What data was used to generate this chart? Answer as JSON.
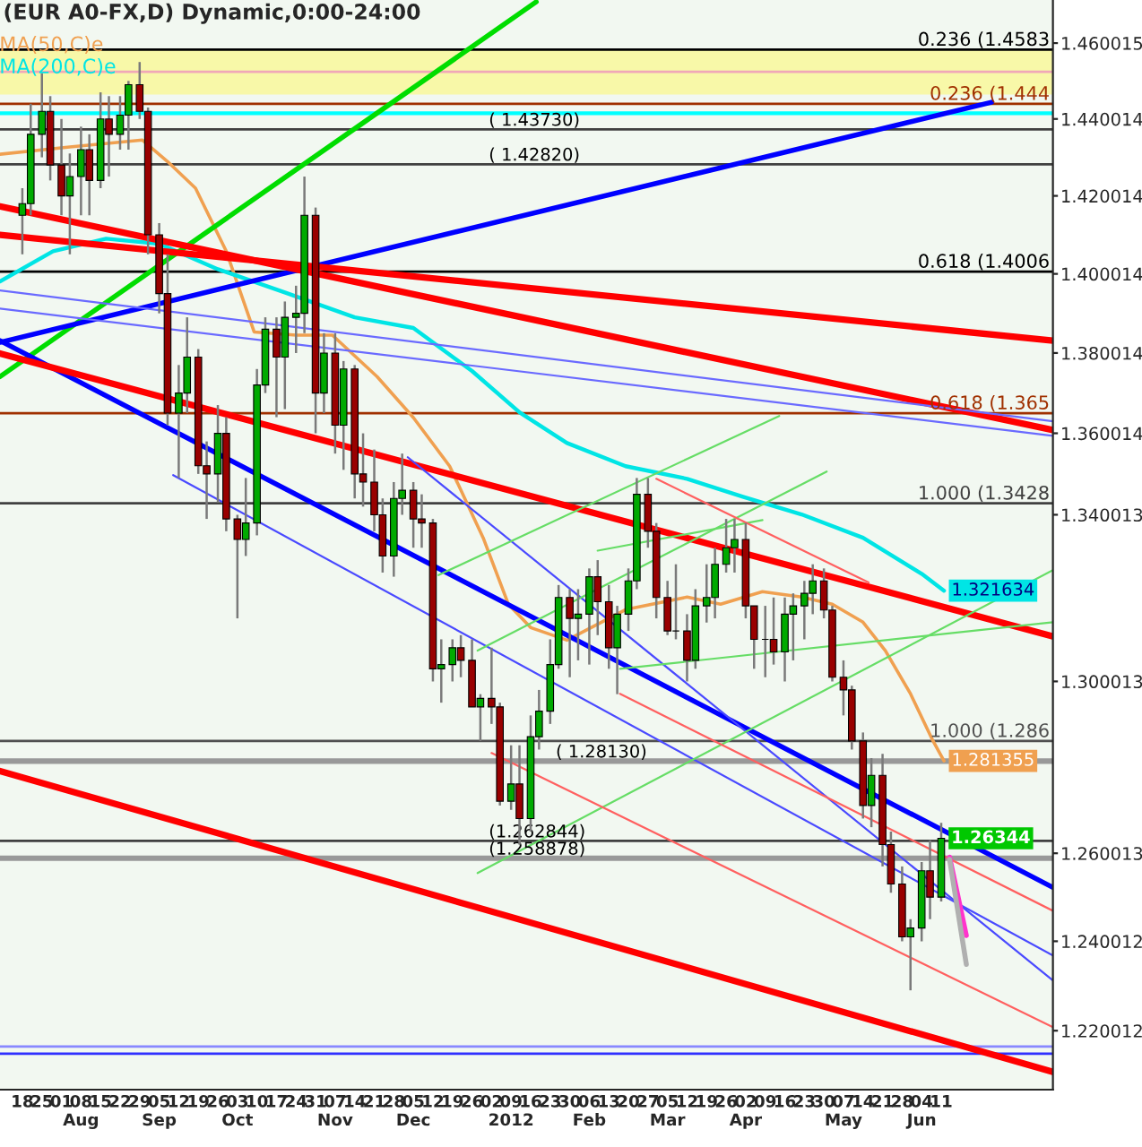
{
  "chart_data": {
    "type": "candlestick",
    "title": "(EUR A0-FX,D) Dynamic,0:00-24:00",
    "log": true,
    "legend": "top left",
    "x": [
      "2011-07-18",
      "2011-07-21",
      "2011-07-25",
      "2011-07-28",
      "2011-08-01",
      "2011-08-04",
      "2011-08-08",
      "2011-08-11",
      "2011-08-15",
      "2011-08-18",
      "2011-08-22",
      "2011-08-25",
      "2011-08-29",
      "2011-09-01",
      "2011-09-05",
      "2011-09-08",
      "2011-09-12",
      "2011-09-15",
      "2011-09-19",
      "2011-09-22",
      "2011-09-26",
      "2011-09-29",
      "2011-10-03",
      "2011-10-06",
      "2011-10-10",
      "2011-10-13",
      "2011-10-17",
      "2011-10-20",
      "2011-10-24",
      "2011-10-27",
      "2011-10-31",
      "2011-11-03",
      "2011-11-07",
      "2011-11-10",
      "2011-11-14",
      "2011-11-17",
      "2011-11-21",
      "2011-11-24",
      "2011-11-28",
      "2011-12-01",
      "2011-12-05",
      "2011-12-08",
      "2011-12-12",
      "2011-12-15",
      "2011-12-19",
      "2011-12-22",
      "2011-12-26",
      "2011-12-29",
      "2012-01-02",
      "2012-01-05",
      "2012-01-09",
      "2012-01-12",
      "2012-01-16",
      "2012-01-19",
      "2012-01-23",
      "2012-01-26",
      "2012-01-30",
      "2012-02-02",
      "2012-02-06",
      "2012-02-09",
      "2012-02-13",
      "2012-02-16",
      "2012-02-20",
      "2012-02-23",
      "2012-02-27",
      "2012-03-01",
      "2012-03-05",
      "2012-03-08",
      "2012-03-12",
      "2012-03-15",
      "2012-03-19",
      "2012-03-22",
      "2012-03-26",
      "2012-03-29",
      "2012-04-02",
      "2012-04-05",
      "2012-04-09",
      "2012-04-12",
      "2012-04-16",
      "2012-04-19",
      "2012-04-23",
      "2012-04-26",
      "2012-04-30",
      "2012-05-03",
      "2012-05-07",
      "2012-05-10",
      "2012-05-14",
      "2012-05-17",
      "2012-05-21",
      "2012-05-24",
      "2012-05-28",
      "2012-05-31",
      "2012-06-04",
      "2012-06-07",
      "2012-06-11"
    ],
    "ohlc": [
      [
        1.415,
        1.422,
        1.405,
        1.418
      ],
      [
        1.418,
        1.444,
        1.415,
        1.436
      ],
      [
        1.436,
        1.452,
        1.43,
        1.442
      ],
      [
        1.442,
        1.446,
        1.424,
        1.428
      ],
      [
        1.428,
        1.44,
        1.415,
        1.42
      ],
      [
        1.42,
        1.431,
        1.405,
        1.425
      ],
      [
        1.425,
        1.438,
        1.415,
        1.432
      ],
      [
        1.432,
        1.436,
        1.415,
        1.424
      ],
      [
        1.424,
        1.447,
        1.422,
        1.44
      ],
      [
        1.44,
        1.446,
        1.425,
        1.436
      ],
      [
        1.436,
        1.446,
        1.432,
        1.441
      ],
      [
        1.441,
        1.45,
        1.432,
        1.449
      ],
      [
        1.449,
        1.455,
        1.44,
        1.442
      ],
      [
        1.442,
        1.443,
        1.405,
        1.41
      ],
      [
        1.41,
        1.413,
        1.39,
        1.395
      ],
      [
        1.395,
        1.405,
        1.362,
        1.365
      ],
      [
        1.365,
        1.377,
        1.349,
        1.37
      ],
      [
        1.37,
        1.389,
        1.365,
        1.379
      ],
      [
        1.379,
        1.381,
        1.35,
        1.352
      ],
      [
        1.352,
        1.358,
        1.339,
        1.35
      ],
      [
        1.35,
        1.367,
        1.343,
        1.36
      ],
      [
        1.36,
        1.364,
        1.336,
        1.339
      ],
      [
        1.339,
        1.34,
        1.315,
        1.334
      ],
      [
        1.334,
        1.349,
        1.33,
        1.338
      ],
      [
        1.338,
        1.376,
        1.335,
        1.372
      ],
      [
        1.372,
        1.389,
        1.37,
        1.386
      ],
      [
        1.386,
        1.389,
        1.364,
        1.379
      ],
      [
        1.379,
        1.393,
        1.366,
        1.389
      ],
      [
        1.389,
        1.397,
        1.38,
        1.39
      ],
      [
        1.39,
        1.425,
        1.385,
        1.415
      ],
      [
        1.415,
        1.417,
        1.36,
        1.37
      ],
      [
        1.37,
        1.385,
        1.365,
        1.38
      ],
      [
        1.38,
        1.385,
        1.355,
        1.362
      ],
      [
        1.362,
        1.378,
        1.351,
        1.376
      ],
      [
        1.376,
        1.377,
        1.344,
        1.35
      ],
      [
        1.35,
        1.36,
        1.342,
        1.348
      ],
      [
        1.348,
        1.356,
        1.336,
        1.34
      ],
      [
        1.34,
        1.344,
        1.326,
        1.33
      ],
      [
        1.33,
        1.348,
        1.325,
        1.344
      ],
      [
        1.344,
        1.355,
        1.34,
        1.346
      ],
      [
        1.346,
        1.348,
        1.332,
        1.339
      ],
      [
        1.339,
        1.345,
        1.332,
        1.338
      ],
      [
        1.338,
        1.339,
        1.3,
        1.303
      ],
      [
        1.303,
        1.31,
        1.295,
        1.304
      ],
      [
        1.304,
        1.31,
        1.3,
        1.308
      ],
      [
        1.308,
        1.311,
        1.301,
        1.305
      ],
      [
        1.305,
        1.31,
        1.294,
        1.294
      ],
      [
        1.294,
        1.297,
        1.286,
        1.296
      ],
      [
        1.296,
        1.308,
        1.29,
        1.294
      ],
      [
        1.294,
        1.295,
        1.271,
        1.272
      ],
      [
        1.272,
        1.285,
        1.27,
        1.276
      ],
      [
        1.276,
        1.285,
        1.262,
        1.268
      ],
      [
        1.268,
        1.292,
        1.265,
        1.287
      ],
      [
        1.287,
        1.298,
        1.284,
        1.293
      ],
      [
        1.293,
        1.31,
        1.29,
        1.304
      ],
      [
        1.304,
        1.323,
        1.303,
        1.32
      ],
      [
        1.32,
        1.322,
        1.301,
        1.315
      ],
      [
        1.315,
        1.322,
        1.305,
        1.316
      ],
      [
        1.316,
        1.327,
        1.304,
        1.325
      ],
      [
        1.325,
        1.329,
        1.311,
        1.319
      ],
      [
        1.319,
        1.323,
        1.303,
        1.308
      ],
      [
        1.308,
        1.318,
        1.297,
        1.316
      ],
      [
        1.316,
        1.327,
        1.312,
        1.324
      ],
      [
        1.324,
        1.349,
        1.322,
        1.345
      ],
      [
        1.345,
        1.349,
        1.332,
        1.336
      ],
      [
        1.336,
        1.338,
        1.315,
        1.32
      ],
      [
        1.32,
        1.324,
        1.311,
        1.312
      ],
      [
        1.312,
        1.328,
        1.31,
        1.312
      ],
      [
        1.312,
        1.316,
        1.3,
        1.305
      ],
      [
        1.305,
        1.322,
        1.303,
        1.318
      ],
      [
        1.318,
        1.328,
        1.314,
        1.32
      ],
      [
        1.32,
        1.332,
        1.315,
        1.328
      ],
      [
        1.328,
        1.339,
        1.326,
        1.332
      ],
      [
        1.332,
        1.339,
        1.326,
        1.334
      ],
      [
        1.334,
        1.338,
        1.315,
        1.318
      ],
      [
        1.318,
        1.318,
        1.303,
        1.31
      ],
      [
        1.31,
        1.318,
        1.301,
        1.31
      ],
      [
        1.31,
        1.32,
        1.304,
        1.307
      ],
      [
        1.307,
        1.32,
        1.3,
        1.316
      ],
      [
        1.316,
        1.321,
        1.305,
        1.318
      ],
      [
        1.318,
        1.324,
        1.31,
        1.321
      ],
      [
        1.321,
        1.328,
        1.316,
        1.324
      ],
      [
        1.324,
        1.327,
        1.315,
        1.317
      ],
      [
        1.317,
        1.318,
        1.3,
        1.301
      ],
      [
        1.301,
        1.305,
        1.292,
        1.298
      ],
      [
        1.298,
        1.299,
        1.284,
        1.286
      ],
      [
        1.286,
        1.288,
        1.268,
        1.271
      ],
      [
        1.271,
        1.282,
        1.266,
        1.278
      ],
      [
        1.278,
        1.283,
        1.257,
        1.262
      ],
      [
        1.262,
        1.265,
        1.251,
        1.253
      ],
      [
        1.253,
        1.257,
        1.24,
        1.241
      ],
      [
        1.241,
        1.245,
        1.229,
        1.243
      ],
      [
        1.243,
        1.258,
        1.24,
        1.256
      ],
      [
        1.256,
        1.263,
        1.245,
        1.25
      ],
      [
        1.25,
        1.267,
        1.249,
        1.26344
      ]
    ],
    "series": [
      {
        "type": "line",
        "name": "MA(50,C)e",
        "color": "#f0a050",
        "x": [
          "2011-07-10",
          "2011-08-04",
          "2011-08-30",
          "2011-09-08",
          "2011-09-18",
          "2011-09-29",
          "2011-10-09",
          "2011-10-24",
          "2011-11-06",
          "2011-11-22",
          "2011-12-05",
          "2011-12-18",
          "2011-12-30",
          "2012-01-08",
          "2012-01-16",
          "2012-01-29",
          "2012-02-19",
          "2012-03-12",
          "2012-03-24",
          "2012-04-08",
          "2012-04-22",
          "2012-05-03",
          "2012-05-14",
          "2012-05-22",
          "2012-05-31",
          "2012-06-08",
          "2012-06-12"
        ],
        "values": [
          1.4308,
          1.4327,
          1.4345,
          1.4289,
          1.422,
          1.4058,
          1.3853,
          1.3845,
          1.3845,
          1.3741,
          1.3639,
          1.3519,
          1.3344,
          1.3184,
          1.3128,
          1.3098,
          1.3171,
          1.3201,
          1.3184,
          1.3214,
          1.3201,
          1.3184,
          1.3141,
          1.3073,
          1.2971,
          1.2861,
          1.281355
        ],
        "value_labels": [
          null,
          null,
          null,
          null,
          null,
          null,
          null,
          null,
          null,
          null,
          null,
          null,
          null,
          null,
          null,
          null,
          null,
          null,
          null,
          null,
          null,
          null,
          null,
          null,
          null,
          null,
          "1.281355"
        ]
      },
      {
        "type": "line",
        "name": "MA(200,C)e",
        "color": "#00e5e5",
        "x": [
          "2011-07-10",
          "2011-07-29",
          "2011-08-17",
          "2011-09-05",
          "2011-09-26",
          "2011-10-20",
          "2011-11-14",
          "2011-12-05",
          "2011-12-26",
          "2012-01-12",
          "2012-01-29",
          "2012-02-19",
          "2012-03-12",
          "2012-04-01",
          "2012-04-22",
          "2012-05-14",
          "2012-06-04",
          "2012-06-12"
        ],
        "values": [
          1.3981,
          1.4058,
          1.409,
          1.4077,
          1.4012,
          1.3953,
          1.389,
          1.3863,
          1.3755,
          1.3652,
          1.3576,
          1.3519,
          1.3488,
          1.3444,
          1.3401,
          1.3344,
          1.3257,
          1.321634
        ],
        "value_labels": [
          null,
          null,
          null,
          null,
          null,
          null,
          null,
          null,
          null,
          null,
          null,
          null,
          null,
          null,
          null,
          null,
          null,
          "1.321634"
        ]
      },
      {
        "type": "line",
        "color": "#00dd00",
        "x": [
          "2011-07-10",
          "2012-01-18"
        ],
        "values": [
          1.3741,
          1.471
        ]
      },
      {
        "type": "line",
        "color": "#0000ff",
        "x": [
          "2011-07-10",
          "2012-06-29"
        ],
        "values": [
          1.3827,
          1.4444
        ]
      },
      {
        "type": "line",
        "color": "#0000ff",
        "x": [
          "2011-07-10",
          "2012-07-21"
        ],
        "values": [
          1.3831,
          1.2522
        ]
      },
      {
        "type": "line",
        "color": "#ff0000",
        "x": [
          "2011-07-10",
          "2012-07-21"
        ],
        "values": [
          1.41,
          1.3831
        ]
      },
      {
        "type": "line",
        "color": "#ff0000",
        "x": [
          "2011-07-10",
          "2012-07-21"
        ],
        "values": [
          1.4173,
          1.3608
        ]
      },
      {
        "type": "line",
        "color": "#ff0000",
        "x": [
          "2011-07-10",
          "2012-07-21"
        ],
        "values": [
          1.3799,
          1.3107
        ]
      },
      {
        "type": "line",
        "color": "#ff0000",
        "x": [
          "2011-07-10",
          "2012-07-21"
        ],
        "values": [
          1.279,
          1.2109
        ]
      },
      {
        "type": "line",
        "color": "#6a6aff",
        "x": [
          "2011-07-10",
          "2012-07-21"
        ],
        "values": [
          1.3958,
          1.363
        ]
      },
      {
        "type": "line",
        "color": "#6a6aff",
        "x": [
          "2011-07-10",
          "2012-07-21"
        ],
        "values": [
          1.3912,
          1.3594
        ]
      },
      {
        "type": "line",
        "color": "#4a4aff",
        "x": [
          "2011-12-03",
          "2012-07-21"
        ],
        "values": [
          1.3541,
          1.2312
        ]
      },
      {
        "type": "line",
        "color": "#4a4aff",
        "x": [
          "2011-09-10",
          "2012-07-21"
        ],
        "values": [
          1.3497,
          1.2368
        ]
      },
      {
        "type": "line",
        "color": "#66dd66",
        "x": [
          "2011-12-14",
          "2012-04-14"
        ],
        "values": [
          1.3254,
          1.3643
        ]
      },
      {
        "type": "line",
        "color": "#66dd66",
        "x": [
          "2011-12-28",
          "2012-05-01"
        ],
        "values": [
          1.3073,
          1.3506
        ]
      },
      {
        "type": "line",
        "color": "#66dd66",
        "x": [
          "2011-12-28",
          "2012-07-21"
        ],
        "values": [
          1.2555,
          1.3266
        ]
      },
      {
        "type": "line",
        "color": "#66dd66",
        "x": [
          "2012-02-09",
          "2012-04-08"
        ],
        "values": [
          1.3313,
          1.3387
        ]
      },
      {
        "type": "line",
        "color": "#66dd66",
        "x": [
          "2012-02-17",
          "2012-07-21"
        ],
        "values": [
          1.303,
          1.3141
        ]
      },
      {
        "type": "line",
        "color": "#ff6060",
        "x": [
          "2012-03-01",
          "2012-05-16"
        ],
        "values": [
          1.3488,
          1.3236
        ]
      },
      {
        "type": "line",
        "color": "#ff6060",
        "x": [
          "2012-02-17",
          "2012-07-21"
        ],
        "values": [
          1.2971,
          1.2469
        ]
      },
      {
        "type": "line",
        "color": "#ff6060",
        "x": [
          "2012-01-02",
          "2012-07-21"
        ],
        "values": [
          1.2832,
          1.2208
        ]
      },
      {
        "type": "line",
        "color": "#ff33cc",
        "x": [
          "2012-06-14",
          "2012-06-20"
        ],
        "values": [
          1.2591,
          1.2413
        ]
      },
      {
        "type": "line",
        "color": "#b0b0b0",
        "x": [
          "2012-06-14",
          "2012-06-20"
        ],
        "values": [
          1.2586,
          1.2348
        ]
      }
    ],
    "ref_lines": [
      {
        "axis": "y",
        "value": 1.4583,
        "label": "0.236 (1.4583",
        "color": "#000000"
      },
      {
        "axis": "y",
        "value": 1.4524,
        "color": "#f0a8b8"
      },
      {
        "axis": "y",
        "value": 1.444,
        "label": "0.236 (1.444",
        "color": "#a03000"
      },
      {
        "axis": "y",
        "value": 1.4373,
        "color": "#404040"
      },
      {
        "axis": "y",
        "value": 1.4282,
        "color": "#404040"
      },
      {
        "axis": "y",
        "value": 1.4006,
        "label": "0.618 (1.4006",
        "color": "#000000"
      },
      {
        "axis": "y",
        "value": 1.365,
        "label": "0.618 (1.365",
        "color": "#a03000"
      },
      {
        "axis": "y",
        "value": 1.3428,
        "label": "1.000 (1.3428",
        "color": "#404040"
      },
      {
        "axis": "y",
        "value": 1.286,
        "label": "1.000 (1.286",
        "color": "#505050"
      },
      {
        "axis": "y",
        "value": 1.2813,
        "color": "#999999"
      },
      {
        "axis": "y",
        "value": 1.262844,
        "color": "#404040"
      },
      {
        "axis": "y",
        "value": 1.258878,
        "color": "#999999"
      },
      {
        "axis": "y",
        "value": 1.2165,
        "color": "#8888ff"
      },
      {
        "axis": "y",
        "value": 1.2149,
        "color": "#3030ff"
      }
    ],
    "bands": [
      {
        "axis": "y",
        "from": 1.4464,
        "to": 1.4583,
        "color": "#f8f8a8"
      },
      {
        "axis": "y",
        "from": 1.441,
        "to": 1.442,
        "color": "#00ffff"
      }
    ],
    "annotations": [
      {
        "text": "( 1.43730)",
        "x": "2012-01-01",
        "y": 1.4373
      },
      {
        "text": "( 1.42820)",
        "x": "2012-01-01",
        "y": 1.4282
      },
      {
        "text": "( 1.28130)",
        "x": "2012-01-25",
        "y": 1.2813
      },
      {
        "text": "(1.262844)",
        "x": "2012-01-01",
        "y": 1.262844
      },
      {
        "text": "(1.258878)",
        "x": "2012-01-01",
        "y": 1.258878
      },
      {
        "text": "1.26344",
        "x": "2012-06-11",
        "y": 1.26344
      }
    ],
    "xlim": [
      "2011-07-10",
      "2012-07-21"
    ],
    "ylim": [
      1.207,
      1.4715
    ],
    "yticks": [
      1.460015,
      1.440014,
      1.420014,
      1.400014,
      1.380014,
      1.360014,
      1.340013,
      1.300013,
      1.260013,
      1.240012,
      1.220012
    ],
    "xticks": [
      {
        "value": "2011-07-18",
        "label": "18"
      },
      {
        "value": "2011-07-25",
        "label": "25"
      },
      {
        "value": "2011-08-01",
        "label": "01"
      },
      {
        "value": "2011-08-08",
        "label": "08\nAug"
      },
      {
        "value": "2011-08-15",
        "label": "15"
      },
      {
        "value": "2011-08-22",
        "label": "22"
      },
      {
        "value": "2011-08-29",
        "label": "29"
      },
      {
        "value": "2011-09-05",
        "label": "05\nSep"
      },
      {
        "value": "2011-09-12",
        "label": "12"
      },
      {
        "value": "2011-09-19",
        "label": "19"
      },
      {
        "value": "2011-09-26",
        "label": "26"
      },
      {
        "value": "2011-10-03",
        "label": "03\nOct"
      },
      {
        "value": "2011-10-10",
        "label": "10"
      },
      {
        "value": "2011-10-17",
        "label": "17"
      },
      {
        "value": "2011-10-24",
        "label": "24"
      },
      {
        "value": "2011-10-31",
        "label": "31"
      },
      {
        "value": "2011-11-07",
        "label": "07\nNov"
      },
      {
        "value": "2011-11-14",
        "label": "14"
      },
      {
        "value": "2011-11-21",
        "label": "21"
      },
      {
        "value": "2011-11-28",
        "label": "28"
      },
      {
        "value": "2011-12-05",
        "label": "05\nDec"
      },
      {
        "value": "2011-12-12",
        "label": "12"
      },
      {
        "value": "2011-12-19",
        "label": "19"
      },
      {
        "value": "2011-12-26",
        "label": "26"
      },
      {
        "value": "2012-01-02",
        "label": "02"
      },
      {
        "value": "2012-01-09",
        "label": "09\n2012"
      },
      {
        "value": "2012-01-16",
        "label": "16"
      },
      {
        "value": "2012-01-23",
        "label": "23"
      },
      {
        "value": "2012-01-30",
        "label": "30"
      },
      {
        "value": "2012-02-06",
        "label": "06\nFeb"
      },
      {
        "value": "2012-02-13",
        "label": "13"
      },
      {
        "value": "2012-02-20",
        "label": "20"
      },
      {
        "value": "2012-02-27",
        "label": "27"
      },
      {
        "value": "2012-03-05",
        "label": "05\nMar"
      },
      {
        "value": "2012-03-12",
        "label": "12"
      },
      {
        "value": "2012-03-19",
        "label": "19"
      },
      {
        "value": "2012-03-26",
        "label": "26"
      },
      {
        "value": "2012-04-02",
        "label": "02\nApr"
      },
      {
        "value": "2012-04-09",
        "label": "09"
      },
      {
        "value": "2012-04-16",
        "label": "16"
      },
      {
        "value": "2012-04-23",
        "label": "23"
      },
      {
        "value": "2012-04-30",
        "label": "30"
      },
      {
        "value": "2012-05-07",
        "label": "07\nMay"
      },
      {
        "value": "2012-05-14",
        "label": "14"
      },
      {
        "value": "2012-05-21",
        "label": "21"
      },
      {
        "value": "2012-05-28",
        "label": "28"
      },
      {
        "value": "2012-06-04",
        "label": "04\nJun"
      },
      {
        "value": "2012-06-11",
        "label": "11"
      }
    ]
  }
}
